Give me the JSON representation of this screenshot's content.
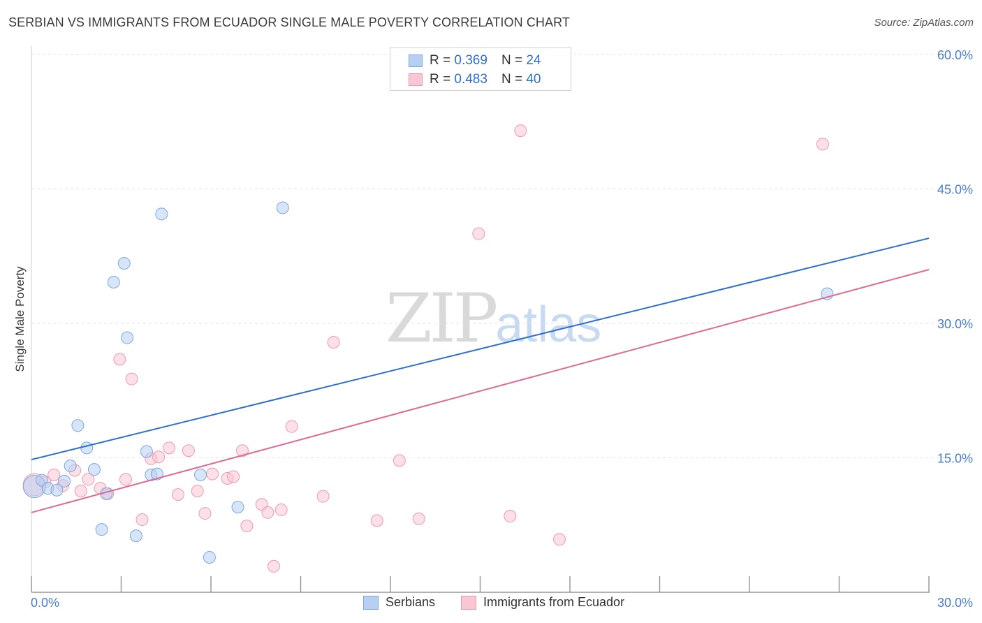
{
  "title": "SERBIAN VS IMMIGRANTS FROM ECUADOR SINGLE MALE POVERTY CORRELATION CHART",
  "source": "Source: ZipAtlas.com",
  "watermark": {
    "zip": "ZIP",
    "atlas": "atlas"
  },
  "legend": {
    "r_label": "R =",
    "n_label": "N =",
    "rows": [
      {
        "r": "0.369",
        "n": "24"
      },
      {
        "r": "0.483",
        "n": "40"
      }
    ]
  },
  "bottom_legend": [
    "Serbians",
    "Immigrants from Ecuador"
  ],
  "colors": {
    "serbian_fill": "#b7cff2",
    "serbian_stroke": "#7fa6df",
    "serbian_line": "#2f6fd0",
    "ecuador_fill": "#f9c6d4",
    "ecuador_stroke": "#ec9ab2",
    "ecuador_line": "#e06a94",
    "axis_label": "#4a7cc9",
    "grid": "#e2e2e2"
  },
  "chart_data": {
    "type": "scatter",
    "title": "SERBIAN VS IMMIGRANTS FROM ECUADOR SINGLE MALE POVERTY CORRELATION CHART",
    "xlabel": "",
    "ylabel": "Single Male Poverty",
    "xlim": [
      0,
      30
    ],
    "ylim": [
      0,
      60
    ],
    "x_tick_labels": [
      "0.0%",
      "30.0%"
    ],
    "y_ticks": [
      15,
      30,
      45,
      60
    ],
    "y_tick_labels": [
      "15.0%",
      "30.0%",
      "45.0%",
      "60.0%"
    ],
    "grid": true,
    "legend_position": "top-center",
    "series": [
      {
        "name": "Serbians",
        "r": 0.369,
        "n": 24,
        "trend": {
          "x": [
            0,
            30
          ],
          "y": [
            14.8,
            39.5
          ]
        },
        "points": [
          {
            "x": 0.1,
            "y": 11.8
          },
          {
            "x": 0.35,
            "y": 12.5
          },
          {
            "x": 0.55,
            "y": 11.6
          },
          {
            "x": 0.85,
            "y": 11.4
          },
          {
            "x": 1.1,
            "y": 12.4
          },
          {
            "x": 1.3,
            "y": 14.1
          },
          {
            "x": 1.55,
            "y": 18.6
          },
          {
            "x": 1.85,
            "y": 16.1
          },
          {
            "x": 2.1,
            "y": 13.7
          },
          {
            "x": 2.35,
            "y": 7.0
          },
          {
            "x": 2.5,
            "y": 11.0
          },
          {
            "x": 2.75,
            "y": 34.6
          },
          {
            "x": 3.1,
            "y": 36.7
          },
          {
            "x": 3.2,
            "y": 28.4
          },
          {
            "x": 3.5,
            "y": 6.3
          },
          {
            "x": 3.85,
            "y": 15.7
          },
          {
            "x": 4.0,
            "y": 13.1
          },
          {
            "x": 4.2,
            "y": 13.2
          },
          {
            "x": 4.35,
            "y": 42.2
          },
          {
            "x": 5.65,
            "y": 13.1
          },
          {
            "x": 5.95,
            "y": 3.9
          },
          {
            "x": 6.9,
            "y": 9.5
          },
          {
            "x": 8.4,
            "y": 42.9
          },
          {
            "x": 26.6,
            "y": 33.3
          }
        ]
      },
      {
        "name": "Immigrants from Ecuador",
        "r": 0.483,
        "n": 40,
        "trend": {
          "x": [
            0,
            30
          ],
          "y": [
            8.9,
            36.0
          ]
        },
        "points": [
          {
            "x": 0.1,
            "y": 12.0
          },
          {
            "x": 0.45,
            "y": 12.3
          },
          {
            "x": 0.75,
            "y": 13.1
          },
          {
            "x": 1.05,
            "y": 11.9
          },
          {
            "x": 1.45,
            "y": 13.6
          },
          {
            "x": 1.65,
            "y": 11.3
          },
          {
            "x": 1.9,
            "y": 12.6
          },
          {
            "x": 2.3,
            "y": 11.6
          },
          {
            "x": 2.55,
            "y": 11.0
          },
          {
            "x": 2.95,
            "y": 26.0
          },
          {
            "x": 3.15,
            "y": 12.6
          },
          {
            "x": 3.35,
            "y": 23.8
          },
          {
            "x": 3.7,
            "y": 8.1
          },
          {
            "x": 4.0,
            "y": 14.9
          },
          {
            "x": 4.25,
            "y": 15.1
          },
          {
            "x": 4.6,
            "y": 16.1
          },
          {
            "x": 4.9,
            "y": 10.9
          },
          {
            "x": 5.25,
            "y": 15.8
          },
          {
            "x": 5.55,
            "y": 11.3
          },
          {
            "x": 5.8,
            "y": 8.8
          },
          {
            "x": 6.05,
            "y": 13.2
          },
          {
            "x": 6.55,
            "y": 12.7
          },
          {
            "x": 6.75,
            "y": 12.9
          },
          {
            "x": 7.05,
            "y": 15.8
          },
          {
            "x": 7.2,
            "y": 7.4
          },
          {
            "x": 7.7,
            "y": 9.8
          },
          {
            "x": 7.9,
            "y": 8.9
          },
          {
            "x": 8.1,
            "y": 2.9
          },
          {
            "x": 8.35,
            "y": 9.2
          },
          {
            "x": 8.7,
            "y": 18.5
          },
          {
            "x": 9.75,
            "y": 10.7
          },
          {
            "x": 10.1,
            "y": 27.9
          },
          {
            "x": 11.55,
            "y": 8.0
          },
          {
            "x": 12.3,
            "y": 14.7
          },
          {
            "x": 12.95,
            "y": 8.2
          },
          {
            "x": 14.95,
            "y": 40.0
          },
          {
            "x": 16.0,
            "y": 8.5
          },
          {
            "x": 16.35,
            "y": 51.5
          },
          {
            "x": 17.65,
            "y": 5.9
          },
          {
            "x": 26.45,
            "y": 50.0
          }
        ]
      }
    ]
  }
}
